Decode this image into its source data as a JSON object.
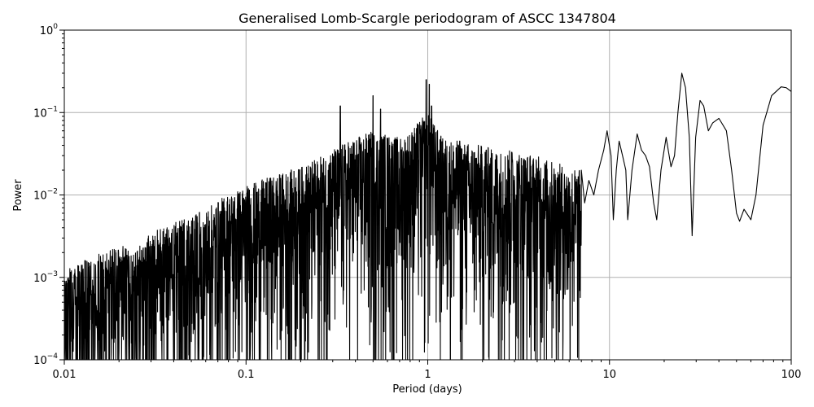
{
  "chart_data": {
    "type": "line",
    "title": "Generalised Lomb-Scargle periodogram of ASCC 1347804",
    "xlabel": "Period (days)",
    "ylabel": "Power",
    "xscale": "log",
    "yscale": "log",
    "xlim": [
      0.01,
      100
    ],
    "ylim": [
      0.0001,
      1
    ],
    "grid": true,
    "x_ticks": [
      {
        "value": 0.01,
        "label": "0.01"
      },
      {
        "value": 0.1,
        "label": "0.1"
      },
      {
        "value": 1,
        "label": "1"
      },
      {
        "value": 10,
        "label": "10"
      },
      {
        "value": 100,
        "label": "100"
      }
    ],
    "y_ticks": [
      {
        "value": 0.0001,
        "base": "10",
        "exp": "−4"
      },
      {
        "value": 0.001,
        "base": "10",
        "exp": "−3"
      },
      {
        "value": 0.01,
        "base": "10",
        "exp": "−2"
      },
      {
        "value": 0.1,
        "base": "10",
        "exp": "−1"
      },
      {
        "value": 1,
        "base": "10",
        "exp": "0"
      }
    ],
    "line_color": "#000000",
    "envelope": [
      [
        0.01,
        0.0012
      ],
      [
        0.012,
        0.0015
      ],
      [
        0.015,
        0.0019
      ],
      [
        0.02,
        0.0023
      ],
      [
        0.025,
        0.0027
      ],
      [
        0.03,
        0.0033
      ],
      [
        0.035,
        0.0042
      ],
      [
        0.04,
        0.0046
      ],
      [
        0.05,
        0.0055
      ],
      [
        0.06,
        0.0068
      ],
      [
        0.07,
        0.0085
      ],
      [
        0.08,
        0.0105
      ],
      [
        0.1,
        0.013
      ],
      [
        0.12,
        0.015
      ],
      [
        0.15,
        0.018
      ],
      [
        0.2,
        0.022
      ],
      [
        0.25,
        0.028
      ],
      [
        0.3,
        0.036
      ],
      [
        0.4,
        0.05
      ],
      [
        0.5,
        0.06
      ],
      [
        0.6,
        0.055
      ],
      [
        0.7,
        0.05
      ],
      [
        0.8,
        0.06
      ],
      [
        0.9,
        0.08
      ],
      [
        1.0,
        0.1
      ],
      [
        1.2,
        0.05
      ],
      [
        1.5,
        0.045
      ],
      [
        2.0,
        0.04
      ],
      [
        2.5,
        0.035
      ],
      [
        3.0,
        0.035
      ],
      [
        4.0,
        0.03
      ],
      [
        5.0,
        0.025
      ],
      [
        6.0,
        0.022
      ],
      [
        7.0,
        0.02
      ]
    ],
    "peaks": [
      {
        "x": 0.5,
        "y": 0.16
      },
      {
        "x": 0.55,
        "y": 0.11
      },
      {
        "x": 0.33,
        "y": 0.12
      },
      {
        "x": 0.98,
        "y": 0.25
      },
      {
        "x": 1.02,
        "y": 0.22
      },
      {
        "x": 1.05,
        "y": 0.12
      },
      {
        "x": 0.9,
        "y": 0.07
      },
      {
        "x": 1.5,
        "y": 0.045
      },
      {
        "x": 2.1,
        "y": 0.035
      },
      {
        "x": 2.9,
        "y": 0.033
      }
    ],
    "smooth_curve": [
      [
        7.0,
        0.02
      ],
      [
        7.3,
        0.008
      ],
      [
        7.7,
        0.015
      ],
      [
        8.2,
        0.01
      ],
      [
        8.7,
        0.02
      ],
      [
        9.3,
        0.035
      ],
      [
        9.7,
        0.06
      ],
      [
        10.2,
        0.03
      ],
      [
        10.5,
        0.005
      ],
      [
        10.9,
        0.02
      ],
      [
        11.3,
        0.045
      ],
      [
        11.8,
        0.03
      ],
      [
        12.3,
        0.02
      ],
      [
        12.6,
        0.005
      ],
      [
        13.3,
        0.02
      ],
      [
        14.2,
        0.055
      ],
      [
        15.0,
        0.035
      ],
      [
        15.8,
        0.03
      ],
      [
        16.6,
        0.022
      ],
      [
        17.5,
        0.008
      ],
      [
        18.2,
        0.005
      ],
      [
        19.2,
        0.02
      ],
      [
        20.5,
        0.05
      ],
      [
        21.8,
        0.022
      ],
      [
        22.8,
        0.03
      ],
      [
        23.8,
        0.1
      ],
      [
        25.0,
        0.3
      ],
      [
        26.2,
        0.2
      ],
      [
        27.5,
        0.05
      ],
      [
        28.5,
        0.0032
      ],
      [
        29.8,
        0.05
      ],
      [
        31.5,
        0.14
      ],
      [
        33.0,
        0.12
      ],
      [
        35.0,
        0.06
      ],
      [
        37.0,
        0.075
      ],
      [
        40.0,
        0.085
      ],
      [
        44.0,
        0.06
      ],
      [
        47.0,
        0.02
      ],
      [
        50.0,
        0.006
      ],
      [
        52.0,
        0.0048
      ],
      [
        55.0,
        0.0067
      ],
      [
        60.0,
        0.005
      ],
      [
        64.0,
        0.01
      ],
      [
        70.0,
        0.07
      ],
      [
        78.0,
        0.16
      ],
      [
        88.0,
        0.205
      ],
      [
        94.0,
        0.2
      ],
      [
        100.0,
        0.18
      ]
    ]
  }
}
